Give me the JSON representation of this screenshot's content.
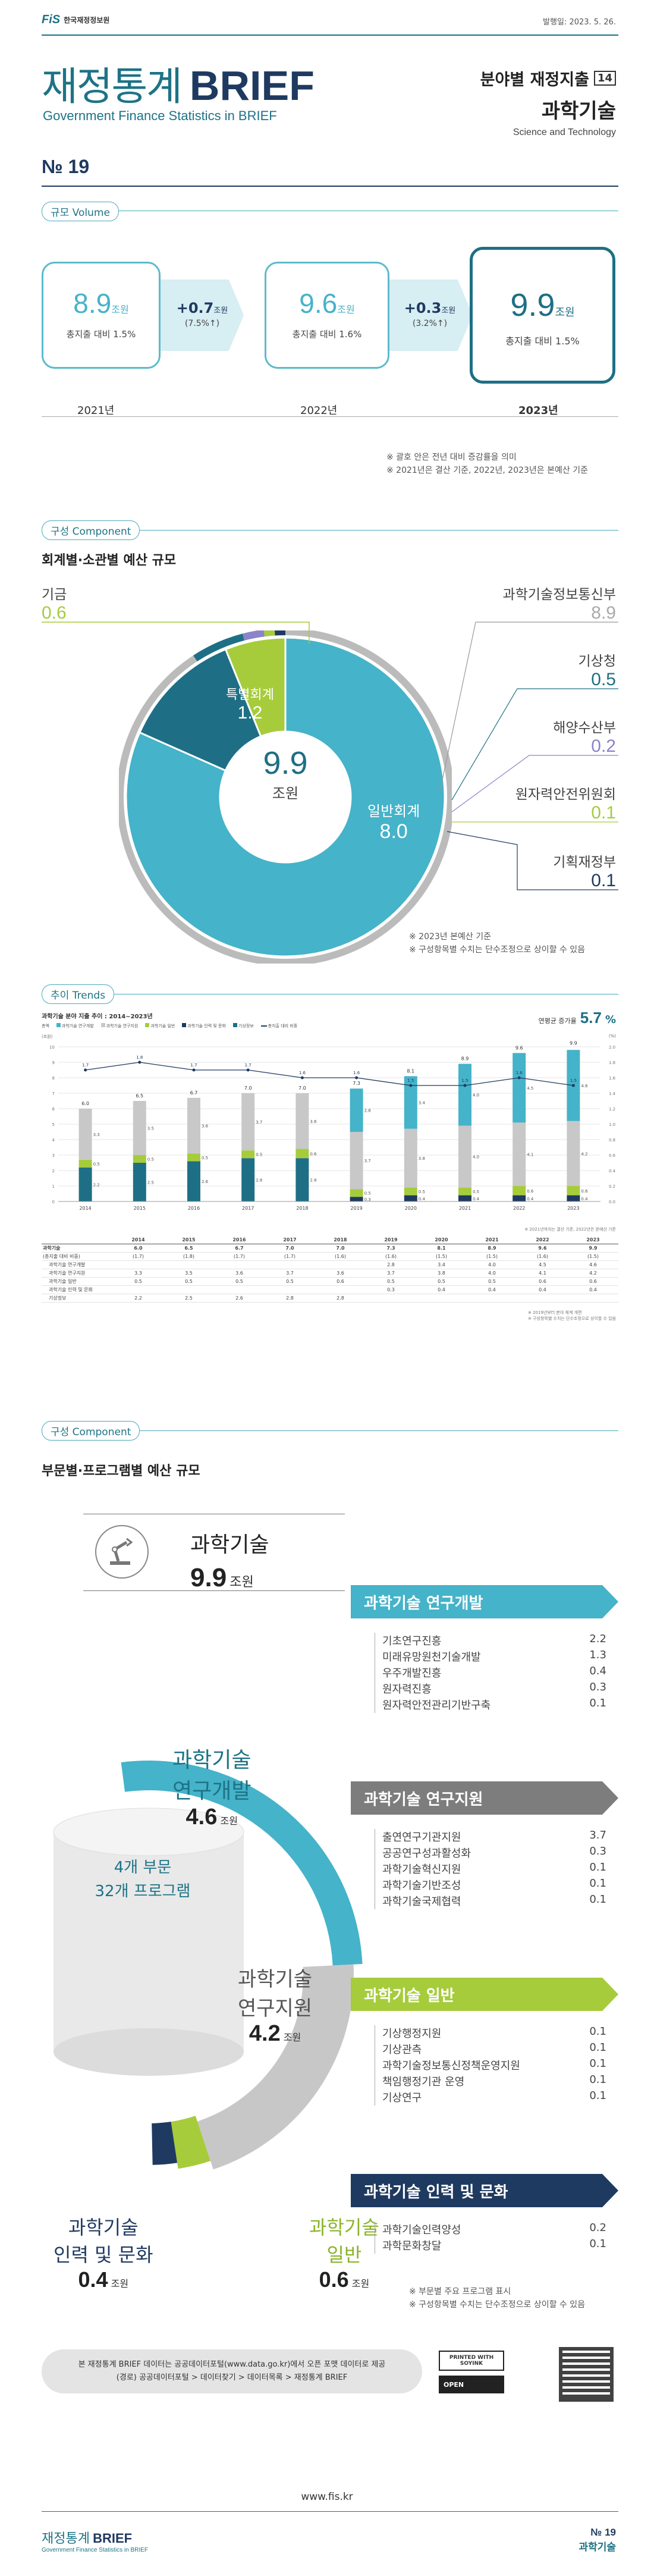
{
  "header": {
    "logo_text": "한국재정정보원",
    "date": "발행일: 2023. 5. 26.",
    "title_kr": "재정통계",
    "title_en": "BRIEF",
    "subtitle": "Government Finance Statistics in BRIEF",
    "series_label": "분야별 재정지출",
    "series_num": "14",
    "topic": "과학기술",
    "topic_en": "Science and Technology",
    "issue": "№ 19"
  },
  "volume": {
    "section": "규모 Volume",
    "cards": [
      {
        "value": "8.9",
        "unit": "조원",
        "ratio": "총지출 대비 1.5%",
        "year": "2021년"
      },
      {
        "value": "9.6",
        "unit": "조원",
        "ratio": "총지출 대비 1.6%",
        "year": "2022년"
      },
      {
        "value": "9.9",
        "unit": "조원",
        "ratio": "총지출 대비 1.5%",
        "year": "2023년"
      }
    ],
    "deltas": [
      {
        "value": "+0.7",
        "unit": "조원",
        "pct": "(7.5%↑)"
      },
      {
        "value": "+0.3",
        "unit": "조원",
        "pct": "(3.2%↑)"
      }
    ],
    "notes": [
      "※ 괄호 안은 전년 대비 증감률을 의미",
      "※ 2021년은 결산 기준, 2022년, 2023년은 본예산 기준"
    ]
  },
  "component1": {
    "section": "구성 Component",
    "title": "회계별·소관별 예산 규모",
    "center_value": "9.9",
    "center_unit": "조원",
    "slices": [
      {
        "label": "일반회계",
        "value": 8.0,
        "color": "#45b3c9"
      },
      {
        "label": "특별회계",
        "value": 1.2,
        "color": "#1e6f85"
      },
      {
        "label": "기금",
        "value": 0.6,
        "color": "#a6cc3c"
      }
    ],
    "inner_slices": [
      {
        "label": "과학기술정보통신부",
        "value": 8.9,
        "color": "#bbbbbb"
      },
      {
        "label": "기상청",
        "value": 0.5,
        "color": "#1e6f85"
      },
      {
        "label": "해양수산부",
        "value": 0.2,
        "color": "#8a84c8"
      },
      {
        "label": "원자력안전위원회",
        "value": 0.1,
        "color": "#a6cc3c"
      },
      {
        "label": "기획재정부",
        "value": 0.1,
        "color": "#1f3a60"
      }
    ],
    "labels": {
      "gigeum": {
        "name": "기금",
        "value": "0.6"
      },
      "special": {
        "name": "특별회계",
        "value": "1.2"
      },
      "general": {
        "name": "일반회계",
        "value": "8.0"
      },
      "msit": {
        "name": "과학기술정보통신부",
        "value": "8.9"
      },
      "kma": {
        "name": "기상청",
        "value": "0.5"
      },
      "mof": {
        "name": "해양수산부",
        "value": "0.2"
      },
      "nssc": {
        "name": "원자력안전위원회",
        "value": "0.1"
      },
      "moef": {
        "name": "기획재정부",
        "value": "0.1"
      }
    },
    "notes": [
      "※ 2023년 본예산 기준",
      "※ 구성항목별 수치는 단수조정으로 상이할 수 있음"
    ]
  },
  "trends": {
    "section": "추이 Trends",
    "chart_title": "과학기술 분야 지출 추이 : 2014~2023년",
    "headline_label": "연평균 증가율",
    "headline_value": "5.7",
    "headline_unit": "%",
    "unit_left": "(조원)",
    "unit_right": "(%)",
    "legend": [
      "총액",
      "과학기술 연구개발",
      "과학기술 연구지원",
      "과학기술 일반",
      "과학기술 인력 및 문화",
      "기상정보",
      "총지출 대비 비중"
    ],
    "source": "※ 2021년까지는 결산 기준, 2022년은 본예산 기준",
    "table_headers": [
      "",
      "2014",
      "2015",
      "2016",
      "2017",
      "2018",
      "2019",
      "2020",
      "2021",
      "2022",
      "2023"
    ],
    "table_rows": [
      [
        "과학기술",
        "6.0",
        "6.5",
        "6.7",
        "7.0",
        "7.0",
        "7.3",
        "8.1",
        "8.9",
        "9.6",
        "9.9"
      ],
      [
        "(총지출 대비 비중)",
        "(1.7)",
        "(1.8)",
        "(1.7)",
        "(1.7)",
        "(1.6)",
        "(1.6)",
        "(1.5)",
        "(1.5)",
        "(1.6)",
        "(1.5)"
      ],
      [
        "과학기술 연구개발",
        "",
        "",
        "",
        "",
        "",
        "2.8",
        "3.4",
        "4.0",
        "4.5",
        "4.6"
      ],
      [
        "과학기술 연구지원",
        "3.3",
        "3.5",
        "3.6",
        "3.7",
        "3.6",
        "3.7",
        "3.8",
        "4.0",
        "4.1",
        "4.2"
      ],
      [
        "과학기술 일반",
        "0.5",
        "0.5",
        "0.5",
        "0.5",
        "0.6",
        "0.5",
        "0.5",
        "0.5",
        "0.6",
        "0.6"
      ],
      [
        "과학기술 인력 및 문화",
        "",
        "",
        "",
        "",
        "",
        "0.3",
        "0.4",
        "0.4",
        "0.4",
        "0.4"
      ],
      [
        "기상정보",
        "2.2",
        "2.5",
        "2.6",
        "2.8",
        "2.8",
        "",
        "",
        "",
        "",
        ""
      ]
    ],
    "footnotes": [
      "※ 2019년부터 분야 체계 개편",
      "※ 구성항목별 수치는 단수조정으로 상이할 수 있음"
    ]
  },
  "chart_data": {
    "type": "bar",
    "title": "과학기술 분야 지출 추이 : 2014~2023년",
    "categories": [
      "2014",
      "2015",
      "2016",
      "2017",
      "2018",
      "2019",
      "2020",
      "2021",
      "2022",
      "2023"
    ],
    "ylim": [
      0,
      10
    ],
    "y2lim": [
      0,
      2.0
    ],
    "series": [
      {
        "name": "기상정보",
        "color": "#1e6f85",
        "values": [
          2.2,
          2.5,
          2.6,
          2.8,
          2.8,
          0,
          0,
          0,
          0,
          0
        ]
      },
      {
        "name": "과학기술 인력 및 문화",
        "color": "#1f3a60",
        "values": [
          0,
          0,
          0,
          0,
          0,
          0.3,
          0.4,
          0.4,
          0.4,
          0.4
        ]
      },
      {
        "name": "과학기술 일반",
        "color": "#a6cc3c",
        "values": [
          0.5,
          0.5,
          0.5,
          0.5,
          0.6,
          0.5,
          0.5,
          0.5,
          0.6,
          0.6
        ]
      },
      {
        "name": "과학기술 연구지원",
        "color": "#c8c8c8",
        "values": [
          3.3,
          3.5,
          3.6,
          3.7,
          3.6,
          3.7,
          3.8,
          4.0,
          4.1,
          4.2
        ]
      },
      {
        "name": "과학기술 연구개발",
        "color": "#45b3c9",
        "values": [
          0,
          0,
          0,
          0,
          0,
          2.8,
          3.4,
          4.0,
          4.5,
          4.6
        ]
      }
    ],
    "totals": [
      6.0,
      6.5,
      6.7,
      7.0,
      7.0,
      7.3,
      8.1,
      8.9,
      9.6,
      9.9
    ],
    "line": {
      "name": "총지출 대비 비중",
      "values": [
        1.7,
        1.8,
        1.7,
        1.7,
        1.6,
        1.6,
        1.5,
        1.5,
        1.6,
        1.5
      ]
    }
  },
  "component2": {
    "section": "구성 Component",
    "title": "부문별·프로그램별 예산 규모",
    "center_title": "과학기술",
    "center_value": "9.9",
    "center_unit": "조원",
    "cylinder_text1": "4개 부문",
    "cylinder_text2": "32개 프로그램",
    "arcs": [
      {
        "label1": "과학기술",
        "label2": "연구개발",
        "value": "4.6",
        "unit": "조원"
      },
      {
        "label1": "과학기술",
        "label2": "연구지원",
        "value": "4.2",
        "unit": "조원"
      },
      {
        "label1": "과학기술",
        "label2": "일반",
        "value": "0.6",
        "unit": "조원"
      },
      {
        "label1": "과학기술",
        "label2": "인력 및 문화",
        "value": "0.4",
        "unit": "조원"
      }
    ],
    "groups": [
      {
        "title": "과학기술 연구개발",
        "color": "#45b3c9",
        "items": [
          [
            "기초연구진흥",
            "2.2"
          ],
          [
            "미래유망원천기술개발",
            "1.3"
          ],
          [
            "우주개발진흥",
            "0.4"
          ],
          [
            "원자력진흥",
            "0.3"
          ],
          [
            "원자력안전관리기반구축",
            "0.1"
          ]
        ]
      },
      {
        "title": "과학기술 연구지원",
        "color": "#7d7d7d",
        "items": [
          [
            "출연연구기관지원",
            "3.7"
          ],
          [
            "공공연구성과활성화",
            "0.3"
          ],
          [
            "과학기술혁신지원",
            "0.1"
          ],
          [
            "과학기술기반조성",
            "0.1"
          ],
          [
            "과학기술국제협력",
            "0.1"
          ]
        ]
      },
      {
        "title": "과학기술 일반",
        "color": "#a6cc3c",
        "items": [
          [
            "기상행정지원",
            "0.1"
          ],
          [
            "기상관측",
            "0.1"
          ],
          [
            "과학기술정보통신정책운영지원",
            "0.1"
          ],
          [
            "책임행정기관 운영",
            "0.1"
          ],
          [
            "기상연구",
            "0.1"
          ]
        ]
      },
      {
        "title": "과학기술 인력 및 문화",
        "color": "#1f3a60",
        "items": [
          [
            "과학기술인력양성",
            "0.2"
          ],
          [
            "과학문화창달",
            "0.1"
          ]
        ]
      }
    ],
    "notes": [
      "※ 부문별 주요 프로그램 표시",
      "※ 구성항목별 수치는 단수조정으로 상이할 수 있음"
    ]
  },
  "footer": {
    "info_line1": "본 재정통계 BRIEF 데이터는 공공데이터포털(www.data.go.kr)에서 오픈 포맷 데이터로 제공",
    "info_line2": "(경로) 공공데이터포털 > 데이터찾기 > 데이터목록 > 재정통계 BRIEF",
    "soy_label": "PRINTED WITH SOYINK",
    "open_label": "OPEN",
    "url": "www.fis.kr",
    "brand_kr": "재정통계",
    "brand_en": "BRIEF",
    "brand_sub": "Government Finance Statistics in BRIEF",
    "issue": "№ 19",
    "topic": "과학기술"
  }
}
